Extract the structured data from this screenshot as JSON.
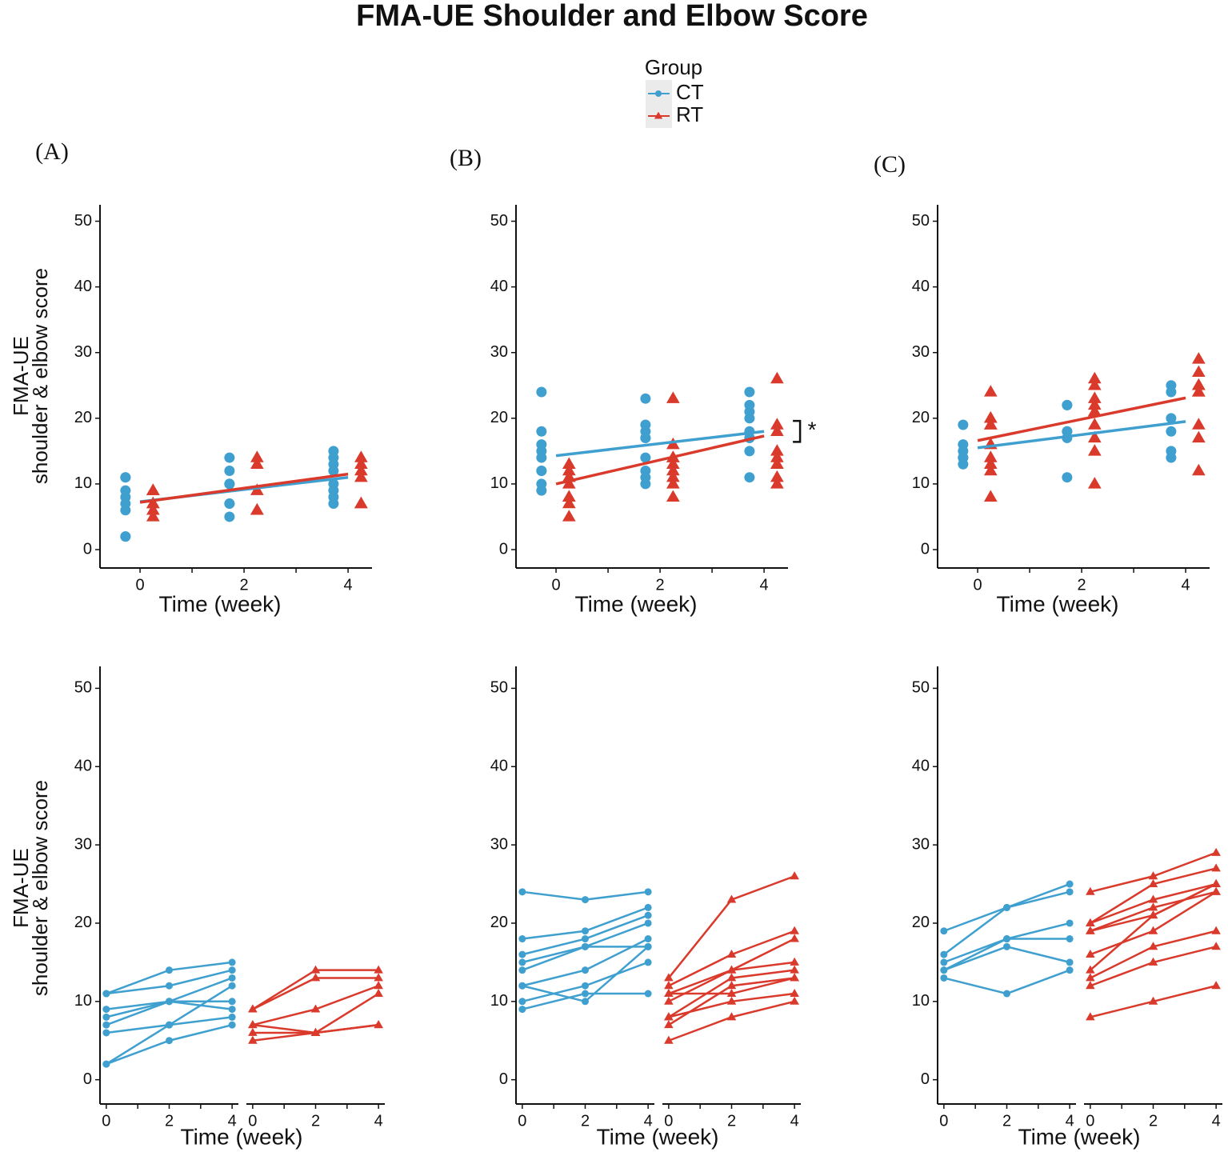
{
  "title": "FMA-UE Shoulder and Elbow Score",
  "legend": {
    "title": "Group",
    "entries": [
      {
        "name": "CT",
        "color": "#3fa0d0"
      },
      {
        "name": "RT",
        "color": "#d93a2b"
      }
    ]
  },
  "chart_data": [
    {
      "type": "repeated_measures",
      "label": "(A)",
      "xlabel": "Time (week)",
      "ylabel": [
        "FMA-UE",
        "shoulder & elbow score"
      ],
      "x": [
        0,
        2,
        4
      ],
      "xticks": [
        0,
        2,
        4
      ],
      "minor_xticks": [
        1,
        3
      ],
      "yticks": [
        0,
        10,
        20,
        30,
        40,
        50
      ],
      "top_xlim": [
        -0.77,
        4.46
      ],
      "top_ylim": [
        -2.8,
        52.5
      ],
      "bottom_xlim": [
        -0.2,
        4.2
      ],
      "bottom_ylim": [
        -3.1,
        52.8
      ],
      "fit_x": [
        0,
        4
      ],
      "series": [
        {
          "color": "#3fa0d0",
          "fit": [
            7.3,
            11.0
          ],
          "values": [
            [
              11,
              14,
              15
            ],
            [
              11,
              12,
              14
            ],
            [
              9,
              10,
              13
            ],
            [
              8,
              10,
              10
            ],
            [
              7,
              10,
              9
            ],
            [
              6,
              7,
              8
            ],
            [
              2,
              5,
              7
            ],
            [
              2,
              7,
              12
            ]
          ]
        },
        {
          "color": "#d93a2b",
          "fit": [
            7.2,
            11.5
          ],
          "values": [
            [
              9,
              14,
              14
            ],
            [
              9,
              13,
              13
            ],
            [
              7,
              9,
              12
            ],
            [
              6,
              6,
              11
            ],
            [
              7,
              6,
              7
            ],
            [
              5,
              6,
              7
            ]
          ]
        }
      ]
    },
    {
      "type": "repeated_measures",
      "label": "(B)",
      "xlabel": "Time (week)",
      "annotation": "*",
      "x": [
        0,
        2,
        4
      ],
      "xticks": [
        0,
        2,
        4
      ],
      "minor_xticks": [
        1,
        3
      ],
      "yticks": [
        0,
        10,
        20,
        30,
        40,
        50
      ],
      "top_xlim": [
        -0.77,
        4.46
      ],
      "top_ylim": [
        -2.8,
        52.5
      ],
      "bottom_xlim": [
        -0.2,
        4.2
      ],
      "bottom_ylim": [
        -3.1,
        52.8
      ],
      "fit_x": [
        0,
        4
      ],
      "series": [
        {
          "color": "#3fa0d0",
          "fit": [
            14.3,
            18.0
          ],
          "values": [
            [
              24,
              23,
              24
            ],
            [
              18,
              19,
              22
            ],
            [
              16,
              18,
              21
            ],
            [
              15,
              17,
              20
            ],
            [
              14,
              17,
              17
            ],
            [
              12,
              14,
              18
            ],
            [
              12,
              10,
              17
            ],
            [
              10,
              12,
              15
            ],
            [
              9,
              11,
              11
            ]
          ]
        },
        {
          "color": "#d93a2b",
          "fit": [
            10.0,
            17.3
          ],
          "values": [
            [
              13,
              23,
              26
            ],
            [
              12,
              16,
              19
            ],
            [
              11,
              14,
              18
            ],
            [
              10,
              14,
              15
            ],
            [
              11,
              11,
              13
            ],
            [
              8,
              13,
              14
            ],
            [
              7,
              12,
              13
            ],
            [
              8,
              10,
              11
            ],
            [
              5,
              8,
              10
            ]
          ]
        }
      ]
    },
    {
      "type": "repeated_measures",
      "label": "(C)",
      "xlabel": "Time (week)",
      "x": [
        0,
        2,
        4
      ],
      "xticks": [
        0,
        2,
        4
      ],
      "minor_xticks": [
        1,
        3
      ],
      "yticks": [
        0,
        10,
        20,
        30,
        40,
        50
      ],
      "top_xlim": [
        -0.77,
        4.46
      ],
      "top_ylim": [
        -2.8,
        52.5
      ],
      "bottom_xlim": [
        -0.2,
        4.2
      ],
      "bottom_ylim": [
        -3.1,
        52.8
      ],
      "fit_x": [
        0,
        4
      ],
      "series": [
        {
          "color": "#3fa0d0",
          "fit": [
            15.5,
            19.5
          ],
          "values": [
            [
              19,
              22,
              24
            ],
            [
              16,
              22,
              25
            ],
            [
              15,
              18,
              20
            ],
            [
              14,
              18,
              18
            ],
            [
              14,
              17,
              15
            ],
            [
              13,
              11,
              14
            ]
          ]
        },
        {
          "color": "#d93a2b",
          "fit": [
            16.6,
            23.1
          ],
          "values": [
            [
              24,
              26,
              29
            ],
            [
              20,
              25,
              27
            ],
            [
              20,
              23,
              25
            ],
            [
              19,
              22,
              24
            ],
            [
              19,
              21,
              25
            ],
            [
              16,
              19,
              24
            ],
            [
              14,
              21,
              25
            ],
            [
              13,
              17,
              19
            ],
            [
              12,
              15,
              17
            ],
            [
              8,
              10,
              12
            ]
          ]
        }
      ]
    }
  ]
}
